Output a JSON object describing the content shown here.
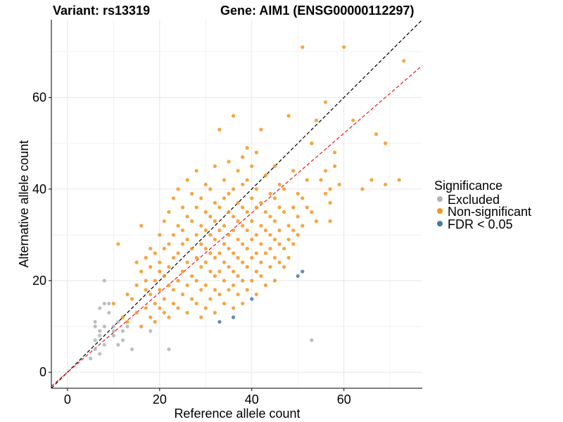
{
  "chart_data": {
    "type": "scatter",
    "title_left": "Variant: rs13319",
    "title_right": "Gene: AIM1 (ENSG00000112297)",
    "xlabel": "Reference allele count",
    "ylabel": "Alternative allele count",
    "xlim": [
      -3.5,
      77
    ],
    "ylim": [
      -3.5,
      77
    ],
    "x_ticks": [
      0,
      20,
      40,
      60
    ],
    "y_ticks": [
      0,
      20,
      40,
      60
    ],
    "reference_lines": [
      {
        "name": "identity",
        "slope": 1.0,
        "color": "#000000"
      },
      {
        "name": "fitted-ratio",
        "slope": 0.87,
        "color": "#e41a1c"
      }
    ],
    "legend": {
      "title": "Significance",
      "position": "right",
      "entries": [
        {
          "label": "Excluded",
          "color": "#b3b3b3"
        },
        {
          "label": "Non-significant",
          "color": "#f7941d"
        },
        {
          "label": "FDR < 0.05",
          "color": "#4a77a8"
        }
      ]
    },
    "series": [
      {
        "name": "Excluded",
        "color": "#b3b3b3",
        "points": [
          [
            5,
            3
          ],
          [
            6,
            5
          ],
          [
            6,
            7
          ],
          [
            6,
            10
          ],
          [
            6,
            11
          ],
          [
            7,
            4
          ],
          [
            7,
            8
          ],
          [
            7,
            9
          ],
          [
            7,
            14
          ],
          [
            8,
            6
          ],
          [
            8,
            10
          ],
          [
            8,
            15
          ],
          [
            8,
            20
          ],
          [
            9,
            13
          ],
          [
            9,
            15
          ],
          [
            10,
            8
          ],
          [
            10,
            9
          ],
          [
            10,
            10
          ],
          [
            11,
            6
          ],
          [
            11,
            11
          ],
          [
            12,
            7
          ],
          [
            12,
            9
          ],
          [
            13,
            10
          ],
          [
            14,
            5
          ],
          [
            18,
            9
          ],
          [
            22,
            5
          ],
          [
            53,
            7
          ]
        ]
      },
      {
        "name": "Non-significant",
        "color": "#f7941d",
        "points": [
          [
            10,
            15
          ],
          [
            11,
            28
          ],
          [
            12,
            12
          ],
          [
            13,
            11
          ],
          [
            13,
            17
          ],
          [
            14,
            16
          ],
          [
            15,
            13
          ],
          [
            15,
            19
          ],
          [
            15,
            24
          ],
          [
            16,
            10
          ],
          [
            16,
            22
          ],
          [
            16,
            32
          ],
          [
            17,
            14
          ],
          [
            17,
            18
          ],
          [
            17,
            20
          ],
          [
            17,
            25
          ],
          [
            18,
            12
          ],
          [
            18,
            17
          ],
          [
            18,
            23
          ],
          [
            18,
            27
          ],
          [
            19,
            11
          ],
          [
            19,
            15
          ],
          [
            19,
            20
          ],
          [
            19,
            26
          ],
          [
            20,
            14
          ],
          [
            20,
            18
          ],
          [
            20,
            22
          ],
          [
            20,
            24
          ],
          [
            20,
            30
          ],
          [
            21,
            13
          ],
          [
            21,
            16
          ],
          [
            21,
            21
          ],
          [
            21,
            27
          ],
          [
            21,
            33
          ],
          [
            22,
            12
          ],
          [
            22,
            19
          ],
          [
            22,
            23
          ],
          [
            22,
            28
          ],
          [
            22,
            35
          ],
          [
            23,
            15
          ],
          [
            23,
            18
          ],
          [
            23,
            25
          ],
          [
            23,
            30
          ],
          [
            23,
            38
          ],
          [
            24,
            14
          ],
          [
            24,
            20
          ],
          [
            24,
            26
          ],
          [
            24,
            32
          ],
          [
            24,
            40
          ],
          [
            25,
            17
          ],
          [
            25,
            22
          ],
          [
            25,
            28
          ],
          [
            25,
            31
          ],
          [
            25,
            36
          ],
          [
            26,
            13
          ],
          [
            26,
            19
          ],
          [
            26,
            24
          ],
          [
            26,
            29
          ],
          [
            26,
            34
          ],
          [
            26,
            42
          ],
          [
            27,
            16
          ],
          [
            27,
            21
          ],
          [
            27,
            27
          ],
          [
            27,
            33
          ],
          [
            27,
            39
          ],
          [
            28,
            15
          ],
          [
            28,
            20
          ],
          [
            28,
            25
          ],
          [
            28,
            30
          ],
          [
            28,
            36
          ],
          [
            28,
            44
          ],
          [
            29,
            12
          ],
          [
            29,
            18
          ],
          [
            29,
            23
          ],
          [
            29,
            28
          ],
          [
            29,
            32
          ],
          [
            29,
            38
          ],
          [
            30,
            14
          ],
          [
            30,
            19
          ],
          [
            30,
            24
          ],
          [
            30,
            27
          ],
          [
            30,
            31
          ],
          [
            30,
            35
          ],
          [
            30,
            41
          ],
          [
            31,
            16
          ],
          [
            31,
            22
          ],
          [
            31,
            26
          ],
          [
            31,
            30
          ],
          [
            31,
            34
          ],
          [
            31,
            40
          ],
          [
            32,
            13
          ],
          [
            32,
            18
          ],
          [
            32,
            21
          ],
          [
            32,
            25
          ],
          [
            32,
            29
          ],
          [
            32,
            33
          ],
          [
            32,
            37
          ],
          [
            32,
            45
          ],
          [
            33,
            17
          ],
          [
            33,
            22
          ],
          [
            33,
            26
          ],
          [
            33,
            31
          ],
          [
            33,
            36
          ],
          [
            33,
            53
          ],
          [
            34,
            15
          ],
          [
            34,
            20
          ],
          [
            34,
            24
          ],
          [
            34,
            28
          ],
          [
            34,
            32
          ],
          [
            34,
            38
          ],
          [
            34,
            42
          ],
          [
            35,
            18
          ],
          [
            35,
            23
          ],
          [
            35,
            27
          ],
          [
            35,
            30
          ],
          [
            35,
            35
          ],
          [
            35,
            39
          ],
          [
            35,
            46
          ],
          [
            36,
            14
          ],
          [
            36,
            19
          ],
          [
            36,
            22
          ],
          [
            36,
            26
          ],
          [
            36,
            31
          ],
          [
            36,
            34
          ],
          [
            36,
            40
          ],
          [
            36,
            56
          ],
          [
            37,
            17
          ],
          [
            37,
            21
          ],
          [
            37,
            25
          ],
          [
            37,
            29
          ],
          [
            37,
            33
          ],
          [
            37,
            37
          ],
          [
            37,
            44
          ],
          [
            38,
            15
          ],
          [
            38,
            20
          ],
          [
            38,
            24
          ],
          [
            38,
            28
          ],
          [
            38,
            32
          ],
          [
            38,
            36
          ],
          [
            38,
            41
          ],
          [
            38,
            47
          ],
          [
            39,
            18
          ],
          [
            39,
            23
          ],
          [
            39,
            27
          ],
          [
            39,
            31
          ],
          [
            39,
            35
          ],
          [
            39,
            42
          ],
          [
            39,
            49
          ],
          [
            40,
            20
          ],
          [
            40,
            25
          ],
          [
            40,
            29
          ],
          [
            40,
            33
          ],
          [
            40,
            38
          ],
          [
            40,
            45
          ],
          [
            41,
            17
          ],
          [
            41,
            22
          ],
          [
            41,
            26
          ],
          [
            41,
            30
          ],
          [
            41,
            36
          ],
          [
            41,
            40
          ],
          [
            41,
            48
          ],
          [
            42,
            21
          ],
          [
            42,
            24
          ],
          [
            42,
            28
          ],
          [
            42,
            32
          ],
          [
            42,
            37
          ],
          [
            42,
            53
          ],
          [
            43,
            19
          ],
          [
            43,
            26
          ],
          [
            43,
            31
          ],
          [
            43,
            35
          ],
          [
            43,
            43
          ],
          [
            44,
            23
          ],
          [
            44,
            27
          ],
          [
            44,
            30
          ],
          [
            44,
            34
          ],
          [
            44,
            39
          ],
          [
            45,
            20
          ],
          [
            45,
            25
          ],
          [
            45,
            29
          ],
          [
            45,
            33
          ],
          [
            45,
            38
          ],
          [
            45,
            45
          ],
          [
            46,
            24
          ],
          [
            46,
            28
          ],
          [
            46,
            31
          ],
          [
            46,
            36
          ],
          [
            46,
            41
          ],
          [
            47,
            23
          ],
          [
            47,
            27
          ],
          [
            47,
            35
          ],
          [
            47,
            40
          ],
          [
            48,
            25
          ],
          [
            48,
            29
          ],
          [
            48,
            32
          ],
          [
            48,
            56
          ],
          [
            49,
            28
          ],
          [
            49,
            31
          ],
          [
            49,
            36
          ],
          [
            49,
            44
          ],
          [
            50,
            30
          ],
          [
            50,
            34
          ],
          [
            50,
            39
          ],
          [
            51,
            32
          ],
          [
            51,
            38
          ],
          [
            51,
            71
          ],
          [
            52,
            36
          ],
          [
            52,
            42
          ],
          [
            53,
            35
          ],
          [
            53,
            50
          ],
          [
            54,
            33
          ],
          [
            54,
            55
          ],
          [
            55,
            42
          ],
          [
            56,
            39
          ],
          [
            56,
            44
          ],
          [
            56,
            59
          ],
          [
            57,
            37
          ],
          [
            57,
            40
          ],
          [
            57,
            33
          ],
          [
            58,
            45
          ],
          [
            58,
            48
          ],
          [
            59,
            41
          ],
          [
            60,
            71
          ],
          [
            62,
            55
          ],
          [
            64,
            40
          ],
          [
            66,
            42
          ],
          [
            67,
            52
          ],
          [
            69,
            41
          ],
          [
            69,
            50
          ],
          [
            72,
            42
          ],
          [
            73,
            68
          ]
        ]
      },
      {
        "name": "FDR < 0.05",
        "color": "#4a77a8",
        "points": [
          [
            33,
            11
          ],
          [
            36,
            12
          ],
          [
            40,
            16
          ],
          [
            50,
            21
          ],
          [
            51,
            22
          ]
        ]
      }
    ]
  }
}
